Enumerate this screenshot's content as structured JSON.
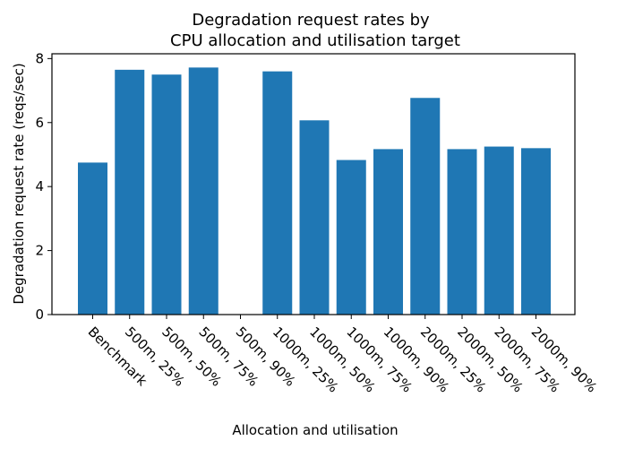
{
  "chart_data": {
    "type": "bar",
    "title": [
      "Degradation request rates by",
      "CPU allocation and utilisation target"
    ],
    "xlabel": "Allocation and utilisation",
    "ylabel": "Degradation request rate (reqs/sec)",
    "categories": [
      "Benchmark",
      "500m, 25%",
      "500m, 50%",
      "500m, 75%",
      "500m, 90%",
      "1000m, 25%",
      "1000m, 50%",
      "1000m, 75%",
      "1000m, 90%",
      "2000m, 25%",
      "2000m, 50%",
      "2000m, 75%",
      "2000m, 90%"
    ],
    "values": [
      4.75,
      7.65,
      7.5,
      7.72,
      0,
      7.6,
      6.07,
      4.83,
      5.17,
      6.77,
      5.17,
      5.25,
      5.2
    ],
    "ylim": [
      0,
      8.15
    ],
    "yticks": [
      0,
      2,
      4,
      6,
      8
    ],
    "grid": false,
    "bar_color": "#1f77b4"
  }
}
